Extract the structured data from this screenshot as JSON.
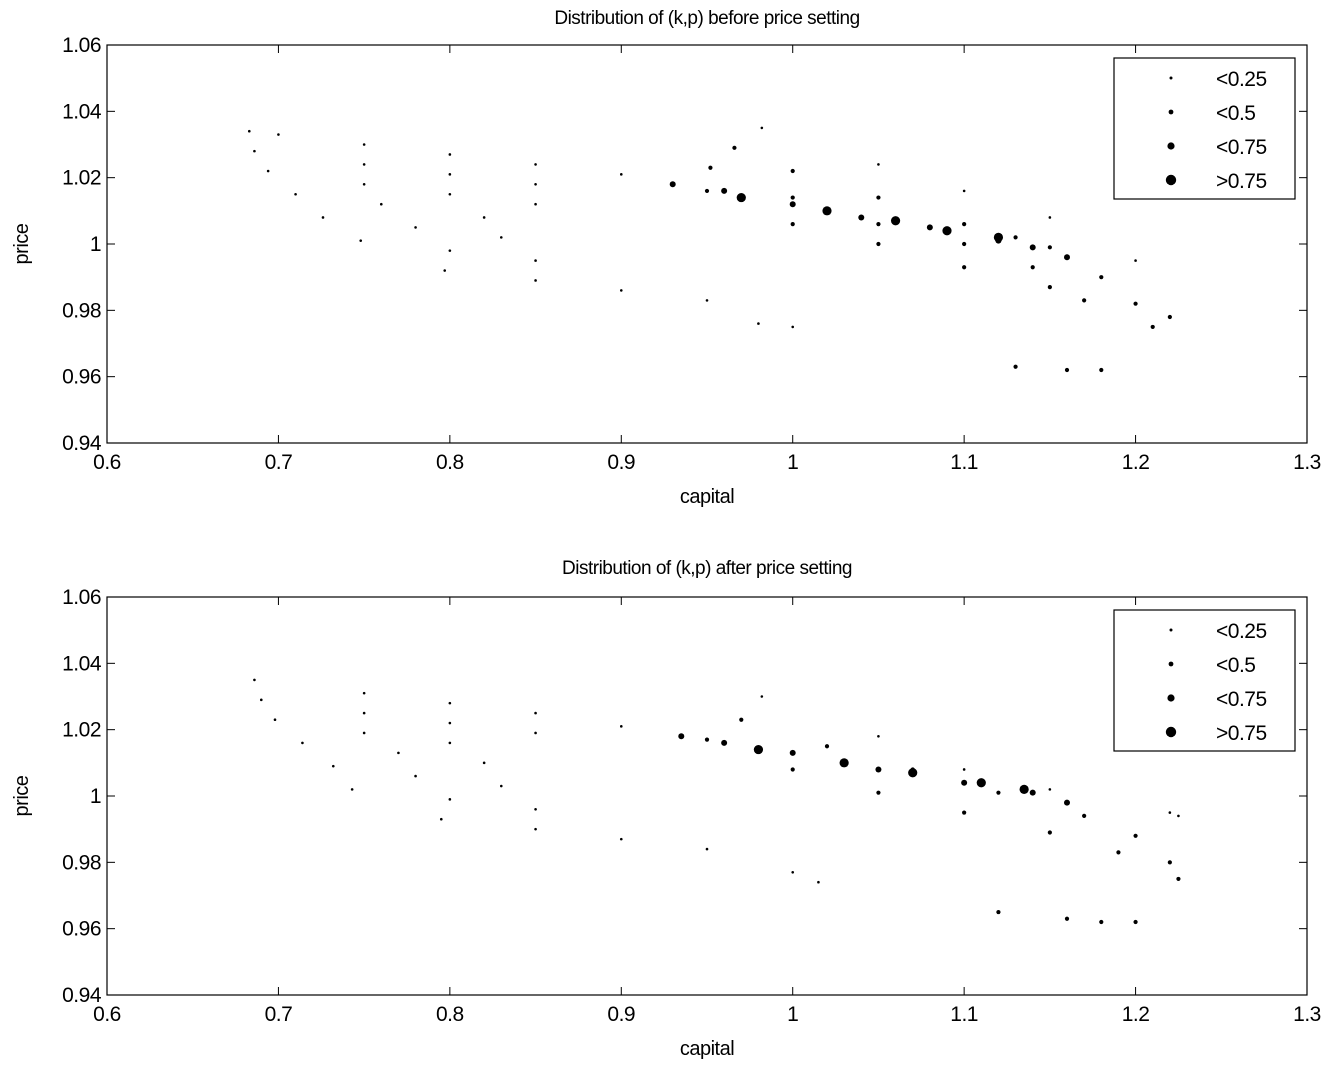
{
  "chart_data": [
    {
      "type": "scatter",
      "title": "Distribution of (k,p) before price setting",
      "xlabel": "capital",
      "ylabel": "price",
      "xlim": [
        0.6,
        1.3
      ],
      "ylim": [
        0.94,
        1.06
      ],
      "xticks": [
        "0.6",
        "0.7",
        "0.8",
        "0.9",
        "1",
        "1.1",
        "1.2",
        "1.3"
      ],
      "yticks": [
        "0.94",
        "0.96",
        "0.98",
        "1",
        "1.02",
        "1.04",
        "1.06"
      ],
      "grid": false,
      "legend_position": "top-right",
      "legend": [
        "<0.25",
        "<0.5",
        "<0.75",
        ">0.75"
      ],
      "series": [
        {
          "name": "<0.25",
          "points": [
            [
              0.683,
              1.034
            ],
            [
              0.7,
              1.033
            ],
            [
              0.75,
              1.03
            ],
            [
              0.8,
              1.027
            ],
            [
              0.85,
              1.024
            ],
            [
              0.9,
              1.021
            ],
            [
              0.686,
              1.028
            ],
            [
              0.75,
              1.024
            ],
            [
              0.8,
              1.021
            ],
            [
              0.85,
              1.018
            ],
            [
              0.694,
              1.022
            ],
            [
              0.75,
              1.018
            ],
            [
              0.8,
              1.015
            ],
            [
              0.85,
              1.012
            ],
            [
              0.71,
              1.015
            ],
            [
              0.76,
              1.012
            ],
            [
              0.82,
              1.008
            ],
            [
              0.726,
              1.008
            ],
            [
              0.78,
              1.005
            ],
            [
              0.83,
              1.002
            ],
            [
              0.748,
              1.001
            ],
            [
              0.8,
              0.998
            ],
            [
              0.85,
              0.995
            ],
            [
              0.797,
              0.992
            ],
            [
              0.85,
              0.989
            ],
            [
              0.9,
              0.986
            ],
            [
              0.95,
              0.983
            ],
            [
              0.98,
              0.976
            ],
            [
              1.0,
              0.975
            ],
            [
              0.982,
              1.035
            ],
            [
              1.05,
              1.024
            ],
            [
              1.1,
              1.016
            ],
            [
              1.15,
              1.008
            ],
            [
              1.2,
              0.995
            ]
          ]
        },
        {
          "name": "<0.5",
          "points": [
            [
              0.95,
              1.016
            ],
            [
              1.0,
              1.006
            ],
            [
              1.05,
              1.0
            ],
            [
              1.1,
              0.993
            ],
            [
              1.15,
              0.987
            ],
            [
              1.17,
              0.983
            ],
            [
              0.952,
              1.023
            ],
            [
              1.0,
              1.014
            ],
            [
              1.05,
              1.006
            ],
            [
              1.1,
              1.0
            ],
            [
              1.14,
              0.993
            ],
            [
              0.966,
              1.029
            ],
            [
              1.0,
              1.022
            ],
            [
              1.05,
              1.014
            ],
            [
              1.1,
              1.006
            ],
            [
              1.13,
              1.002
            ],
            [
              1.15,
              0.999
            ],
            [
              1.18,
              0.99
            ],
            [
              1.2,
              0.982
            ],
            [
              1.21,
              0.975
            ],
            [
              1.22,
              0.978
            ],
            [
              1.16,
              0.962
            ],
            [
              1.18,
              0.962
            ],
            [
              1.13,
              0.963
            ]
          ]
        },
        {
          "name": "<0.75",
          "points": [
            [
              0.93,
              1.018
            ],
            [
              0.96,
              1.016
            ],
            [
              1.0,
              1.012
            ],
            [
              1.04,
              1.008
            ],
            [
              1.08,
              1.005
            ],
            [
              1.12,
              1.001
            ],
            [
              1.14,
              0.999
            ],
            [
              1.16,
              0.996
            ]
          ]
        },
        {
          "name": ">0.75",
          "points": [
            [
              0.97,
              1.014
            ],
            [
              1.02,
              1.01
            ],
            [
              1.06,
              1.007
            ],
            [
              1.09,
              1.004
            ],
            [
              1.12,
              1.002
            ]
          ]
        }
      ]
    },
    {
      "type": "scatter",
      "title": "Distribution of (k,p) after price setting",
      "xlabel": "capital",
      "ylabel": "price",
      "xlim": [
        0.6,
        1.3
      ],
      "ylim": [
        0.94,
        1.06
      ],
      "xticks": [
        "0.6",
        "0.7",
        "0.8",
        "0.9",
        "1",
        "1.1",
        "1.2",
        "1.3"
      ],
      "yticks": [
        "0.94",
        "0.96",
        "0.98",
        "1",
        "1.02",
        "1.04",
        "1.06"
      ],
      "grid": false,
      "legend_position": "top-right",
      "legend": [
        "<0.25",
        "<0.5",
        "<0.75",
        ">0.75"
      ],
      "series": [
        {
          "name": "<0.25",
          "points": [
            [
              0.686,
              1.035
            ],
            [
              0.75,
              1.031
            ],
            [
              0.8,
              1.028
            ],
            [
              0.85,
              1.025
            ],
            [
              0.9,
              1.021
            ],
            [
              0.69,
              1.029
            ],
            [
              0.75,
              1.025
            ],
            [
              0.8,
              1.022
            ],
            [
              0.85,
              1.019
            ],
            [
              0.698,
              1.023
            ],
            [
              0.75,
              1.019
            ],
            [
              0.8,
              1.016
            ],
            [
              0.714,
              1.016
            ],
            [
              0.77,
              1.013
            ],
            [
              0.82,
              1.01
            ],
            [
              0.732,
              1.009
            ],
            [
              0.78,
              1.006
            ],
            [
              0.83,
              1.003
            ],
            [
              0.743,
              1.002
            ],
            [
              0.8,
              0.999
            ],
            [
              0.85,
              0.996
            ],
            [
              0.795,
              0.993
            ],
            [
              0.85,
              0.99
            ],
            [
              0.9,
              0.987
            ],
            [
              0.95,
              0.984
            ],
            [
              1.0,
              0.977
            ],
            [
              1.015,
              0.974
            ],
            [
              0.982,
              1.03
            ],
            [
              1.05,
              1.018
            ],
            [
              1.1,
              1.008
            ],
            [
              1.15,
              1.002
            ],
            [
              1.22,
              0.995
            ],
            [
              1.225,
              0.994
            ]
          ]
        },
        {
          "name": "<0.5",
          "points": [
            [
              0.95,
              1.017
            ],
            [
              1.0,
              1.008
            ],
            [
              1.05,
              1.001
            ],
            [
              1.1,
              0.995
            ],
            [
              1.15,
              0.989
            ],
            [
              1.19,
              0.983
            ],
            [
              0.97,
              1.023
            ],
            [
              1.02,
              1.015
            ],
            [
              1.07,
              1.008
            ],
            [
              1.12,
              1.001
            ],
            [
              1.17,
              0.994
            ],
            [
              1.2,
              0.988
            ],
            [
              1.22,
              0.98
            ],
            [
              1.225,
              0.975
            ],
            [
              1.18,
              0.962
            ],
            [
              1.2,
              0.962
            ],
            [
              1.16,
              0.963
            ],
            [
              1.12,
              0.965
            ]
          ]
        },
        {
          "name": "<0.75",
          "points": [
            [
              0.935,
              1.018
            ],
            [
              0.96,
              1.016
            ],
            [
              1.0,
              1.013
            ],
            [
              1.05,
              1.008
            ],
            [
              1.1,
              1.004
            ],
            [
              1.14,
              1.001
            ],
            [
              1.16,
              0.998
            ]
          ]
        },
        {
          "name": ">0.75",
          "points": [
            [
              0.98,
              1.014
            ],
            [
              1.03,
              1.01
            ],
            [
              1.07,
              1.007
            ],
            [
              1.11,
              1.004
            ],
            [
              1.135,
              1.002
            ]
          ]
        }
      ]
    }
  ]
}
